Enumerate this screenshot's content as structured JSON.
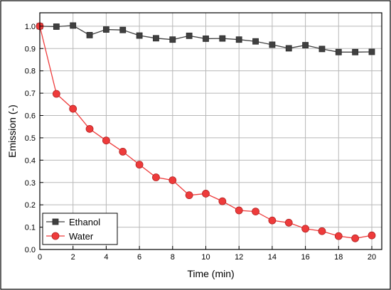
{
  "chart_data": {
    "type": "line",
    "title": "",
    "xlabel": "Time (min)",
    "ylabel": "Emission (-)",
    "xlim": [
      0,
      20.6
    ],
    "ylim": [
      0,
      1.06
    ],
    "x_ticks": [
      0,
      2,
      4,
      6,
      8,
      10,
      12,
      14,
      16,
      18,
      20
    ],
    "y_ticks": [
      0.0,
      0.1,
      0.2,
      0.3,
      0.4,
      0.5,
      0.6,
      0.7,
      0.8,
      0.9,
      1.0
    ],
    "y_tick_labels": [
      "0.0",
      "0.1",
      "0.2",
      "0.3",
      "0.4",
      "0.5",
      "0.6",
      "0.7",
      "0.8",
      "0.9",
      "1.0"
    ],
    "grid": true,
    "legend_position": "bottom-left",
    "x": [
      0,
      1,
      2,
      3,
      4,
      5,
      6,
      7,
      8,
      9,
      10,
      11,
      12,
      13,
      14,
      15,
      16,
      17,
      18,
      19,
      20
    ],
    "series": [
      {
        "name": "Ethanol",
        "marker": "square",
        "color": "#404040",
        "values": [
          1.0,
          0.998,
          1.003,
          0.96,
          0.985,
          0.983,
          0.958,
          0.946,
          0.94,
          0.957,
          0.944,
          0.945,
          0.94,
          0.932,
          0.917,
          0.901,
          0.915,
          0.898,
          0.884,
          0.884,
          0.885
        ]
      },
      {
        "name": "Water",
        "marker": "circle",
        "color": "#ee3b3b",
        "values": [
          1.0,
          0.697,
          0.63,
          0.54,
          0.488,
          0.438,
          0.38,
          0.323,
          0.31,
          0.243,
          0.25,
          0.216,
          0.175,
          0.17,
          0.13,
          0.12,
          0.093,
          0.082,
          0.06,
          0.05,
          0.063
        ]
      }
    ]
  }
}
